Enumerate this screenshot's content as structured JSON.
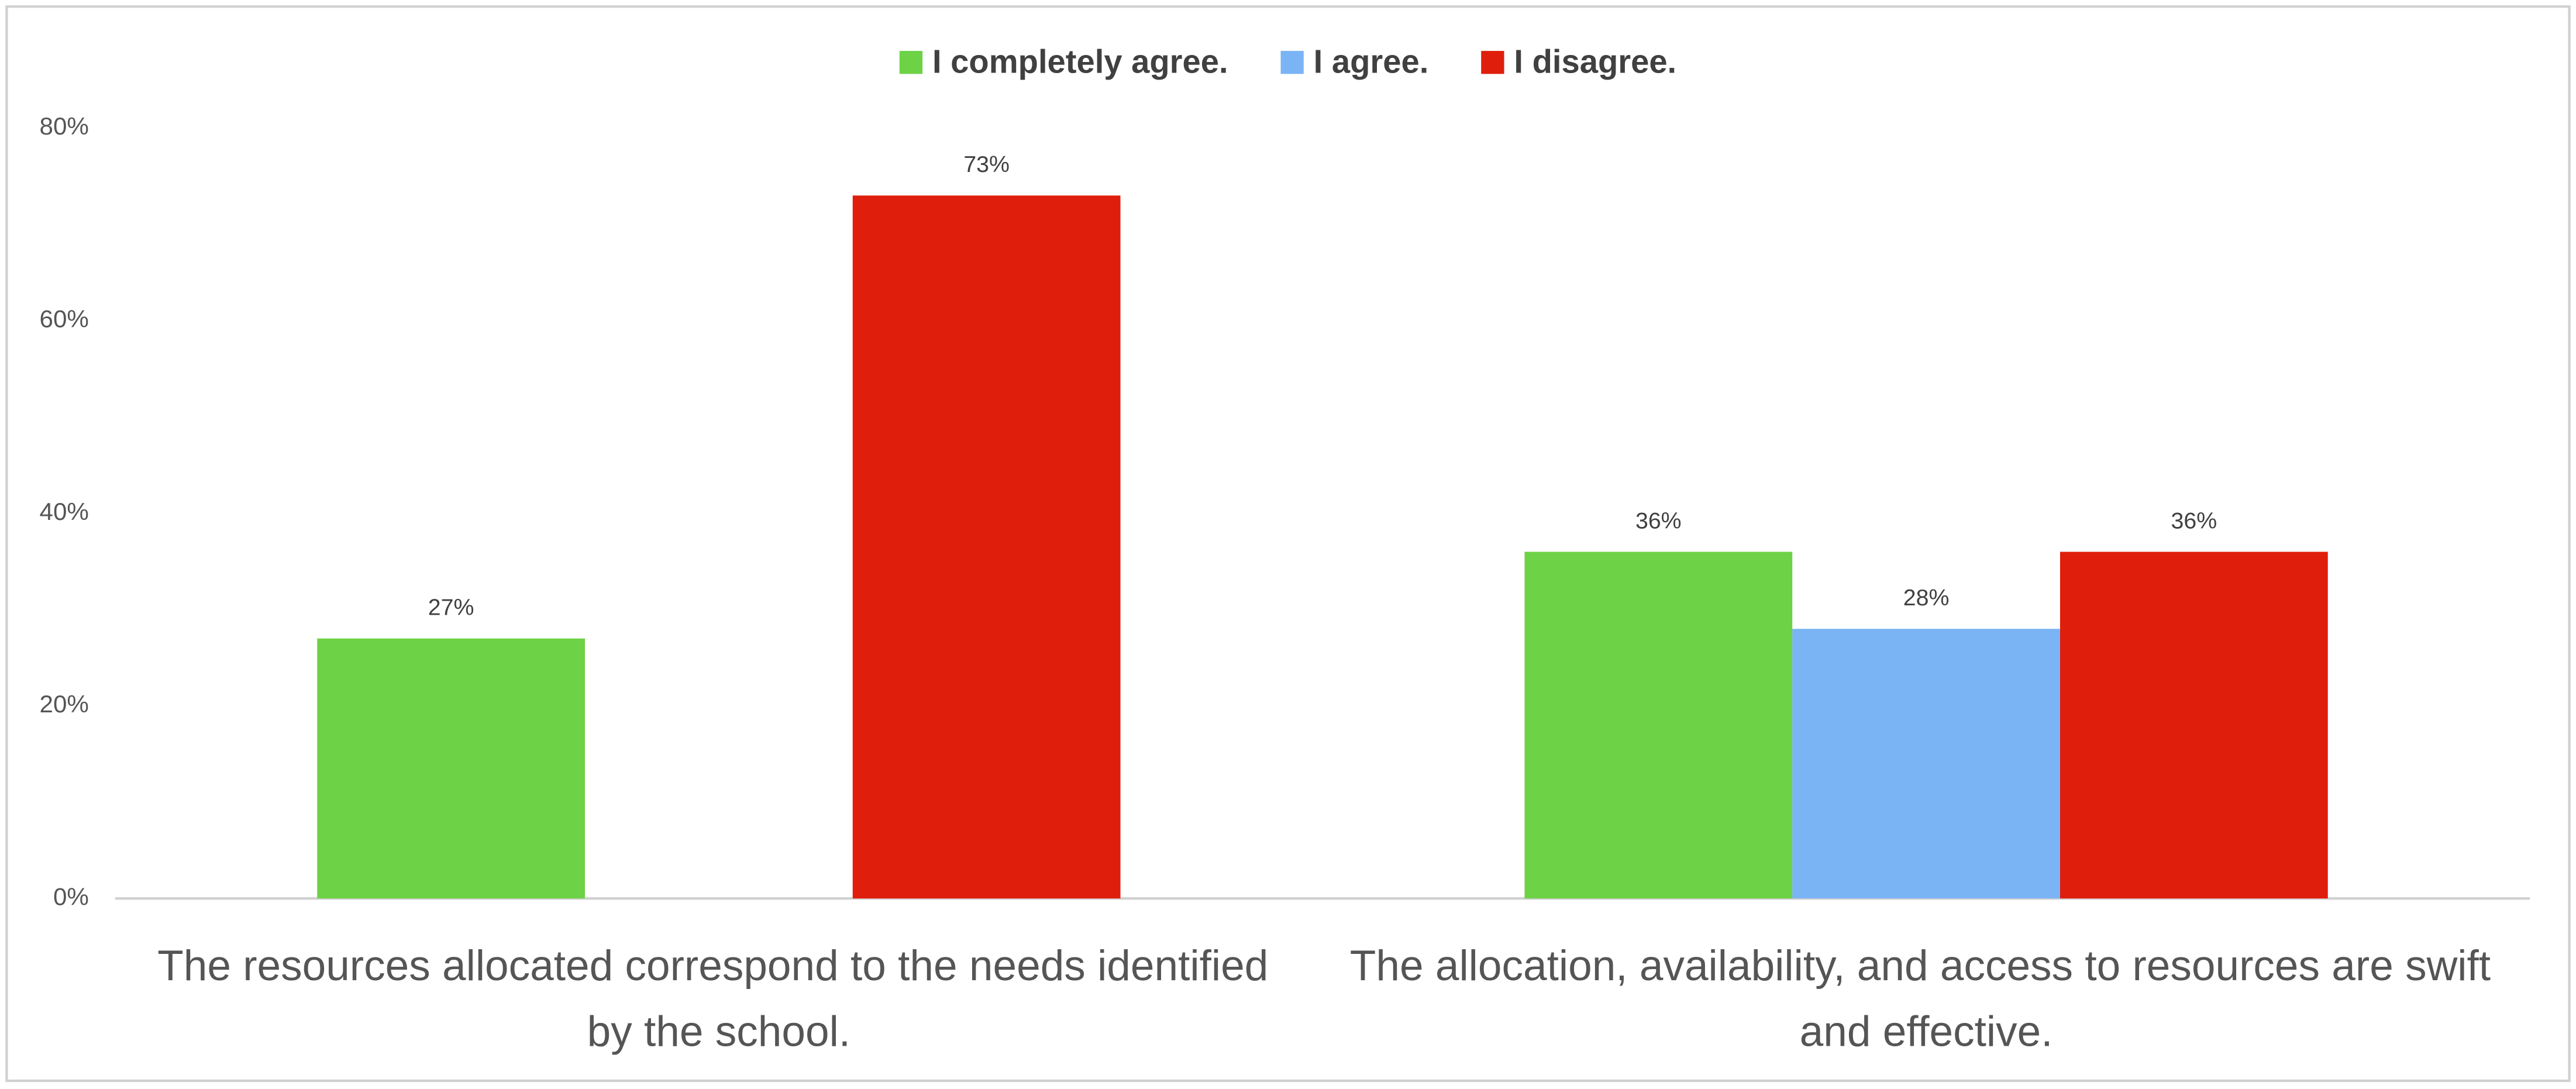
{
  "chart_data": {
    "type": "bar",
    "categories": [
      "The resources allocated correspond to the needs identified by the school.",
      "The allocation, availability, and access to resources are swift and effective."
    ],
    "series": [
      {
        "name": "I completely agree.",
        "color": "#6dd246",
        "values": [
          27,
          36
        ],
        "value_labels": [
          "27%",
          "36%"
        ]
      },
      {
        "name": "I agree.",
        "color": "#7ab4f5",
        "values": [
          null,
          28
        ],
        "value_labels": [
          null,
          "28%"
        ]
      },
      {
        "name": "I disagree.",
        "color": "#e01e0c",
        "values": [
          73,
          36
        ],
        "value_labels": [
          "73%",
          "36%"
        ]
      }
    ],
    "ylim": [
      0,
      80
    ],
    "yticks": [
      {
        "value": 0,
        "label": "0%"
      },
      {
        "value": 20,
        "label": "20%"
      },
      {
        "value": 40,
        "label": "40%"
      },
      {
        "value": 60,
        "label": "60%"
      },
      {
        "value": 80,
        "label": "80%"
      }
    ],
    "grid": false,
    "legend": "top"
  }
}
